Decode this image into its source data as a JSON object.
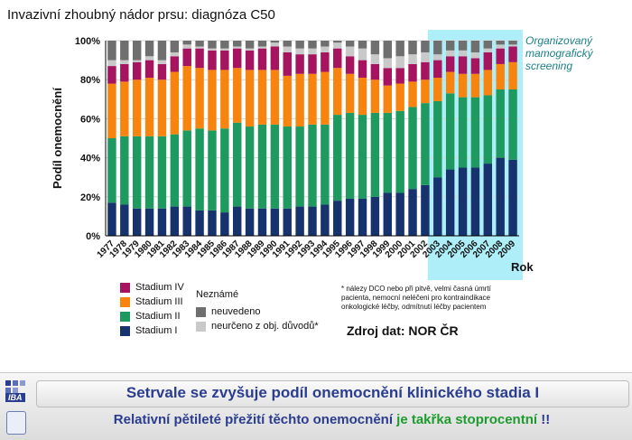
{
  "title": "Invazivní zhoubný nádor prsu: diagnóza C50",
  "annotation": "Organizovaný mamografický screening",
  "colors": {
    "stadium_iv": "#a6135e",
    "stadium_iii": "#f7840e",
    "stadium_ii": "#1e9a60",
    "stadium_i": "#17336e",
    "neuvedeno": "#6f6f6f",
    "neurceno": "#c9c9c9",
    "screening_highlight": "#aeeef8"
  },
  "legend": {
    "stages": [
      "Stadium IV",
      "Stadium III",
      "Stadium II",
      "Stadium I"
    ],
    "unknown_title": "Neznámé",
    "unknown": [
      "neuvedeno",
      "neurčeno z obj. důvodů*"
    ]
  },
  "footnote": "* nálezy DCO nebo při pitvě, velmi časná úmrtí pacienta, nemocní neléčeni pro kontraindikace onkologické léčby, odmítnutí léčby pacientem",
  "source": "Zdroj dat: NOR ČR",
  "footer": {
    "logo_text": "IBA",
    "headline": "Setrvale se zvyšuje podíl onemocnění klinického stadia I",
    "subline_part1": "Relativní pětileté přežití těchto onemocnění ",
    "subline_highlight": "je takřka stoprocentní",
    "subline_part2": " !!"
  },
  "chart_data": {
    "type": "bar",
    "stacked": true,
    "ylabel": "Podíl onemocnění",
    "xlabel": "Rok",
    "ylim": [
      0,
      100
    ],
    "y_ticks": [
      "0%",
      "20%",
      "40%",
      "60%",
      "80%",
      "100%"
    ],
    "highlight_range": [
      "2003",
      "2009"
    ],
    "categories": [
      "1977",
      "1978",
      "1979",
      "1980",
      "1981",
      "1982",
      "1983",
      "1984",
      "1985",
      "1986",
      "1987",
      "1988",
      "1989",
      "1990",
      "1991",
      "1992",
      "1993",
      "1994",
      "1995",
      "1996",
      "1997",
      "1998",
      "1999",
      "2000",
      "2001",
      "2002",
      "2003",
      "2004",
      "2005",
      "2006",
      "2007",
      "2008",
      "2009"
    ],
    "series": [
      {
        "name": "Stadium I",
        "key": "stadium_i",
        "values": [
          17,
          16,
          14,
          14,
          14,
          15,
          15,
          13,
          13,
          12,
          15,
          14,
          14,
          14,
          14,
          15,
          15,
          16,
          18,
          19,
          19,
          20,
          22,
          22,
          24,
          26,
          30,
          34,
          35,
          35,
          37,
          40,
          39
        ]
      },
      {
        "name": "Stadium II",
        "key": "stadium_ii",
        "values": [
          33,
          35,
          37,
          37,
          37,
          37,
          39,
          42,
          41,
          43,
          43,
          42,
          43,
          43,
          42,
          41,
          42,
          41,
          44,
          44,
          43,
          43,
          41,
          42,
          42,
          42,
          39,
          39,
          36,
          36,
          35,
          35,
          36
        ]
      },
      {
        "name": "Stadium III",
        "key": "stadium_iii",
        "values": [
          28,
          28,
          29,
          30,
          29,
          32,
          33,
          31,
          31,
          30,
          28,
          29,
          28,
          28,
          26,
          27,
          26,
          27,
          24,
          20,
          19,
          17,
          14,
          14,
          13,
          12,
          12,
          11,
          12,
          12,
          13,
          13,
          14
        ]
      },
      {
        "name": "Stadium IV",
        "key": "stadium_iv",
        "values": [
          9,
          9,
          9,
          9,
          8,
          8,
          9,
          10,
          10,
          10,
          10,
          10,
          11,
          12,
          12,
          10,
          10,
          10,
          10,
          9,
          9,
          8,
          9,
          8,
          9,
          9,
          9,
          8,
          9,
          8,
          9,
          8,
          8
        ]
      },
      {
        "name": "neurčeno z obj. důvodů*",
        "key": "neurceno",
        "values": [
          3,
          2,
          1,
          2,
          2,
          2,
          2,
          1,
          1,
          1,
          1,
          1,
          1,
          2,
          3,
          3,
          3,
          3,
          3,
          5,
          6,
          5,
          5,
          6,
          5,
          5,
          3,
          3,
          3,
          3,
          2,
          2,
          1
        ]
      },
      {
        "name": "neuvedeno",
        "key": "neuvedeno",
        "values": [
          10,
          10,
          10,
          8,
          10,
          6,
          2,
          3,
          4,
          4,
          3,
          4,
          3,
          1,
          3,
          4,
          4,
          3,
          1,
          3,
          4,
          7,
          9,
          8,
          7,
          6,
          7,
          5,
          5,
          6,
          4,
          2,
          2
        ]
      }
    ]
  }
}
